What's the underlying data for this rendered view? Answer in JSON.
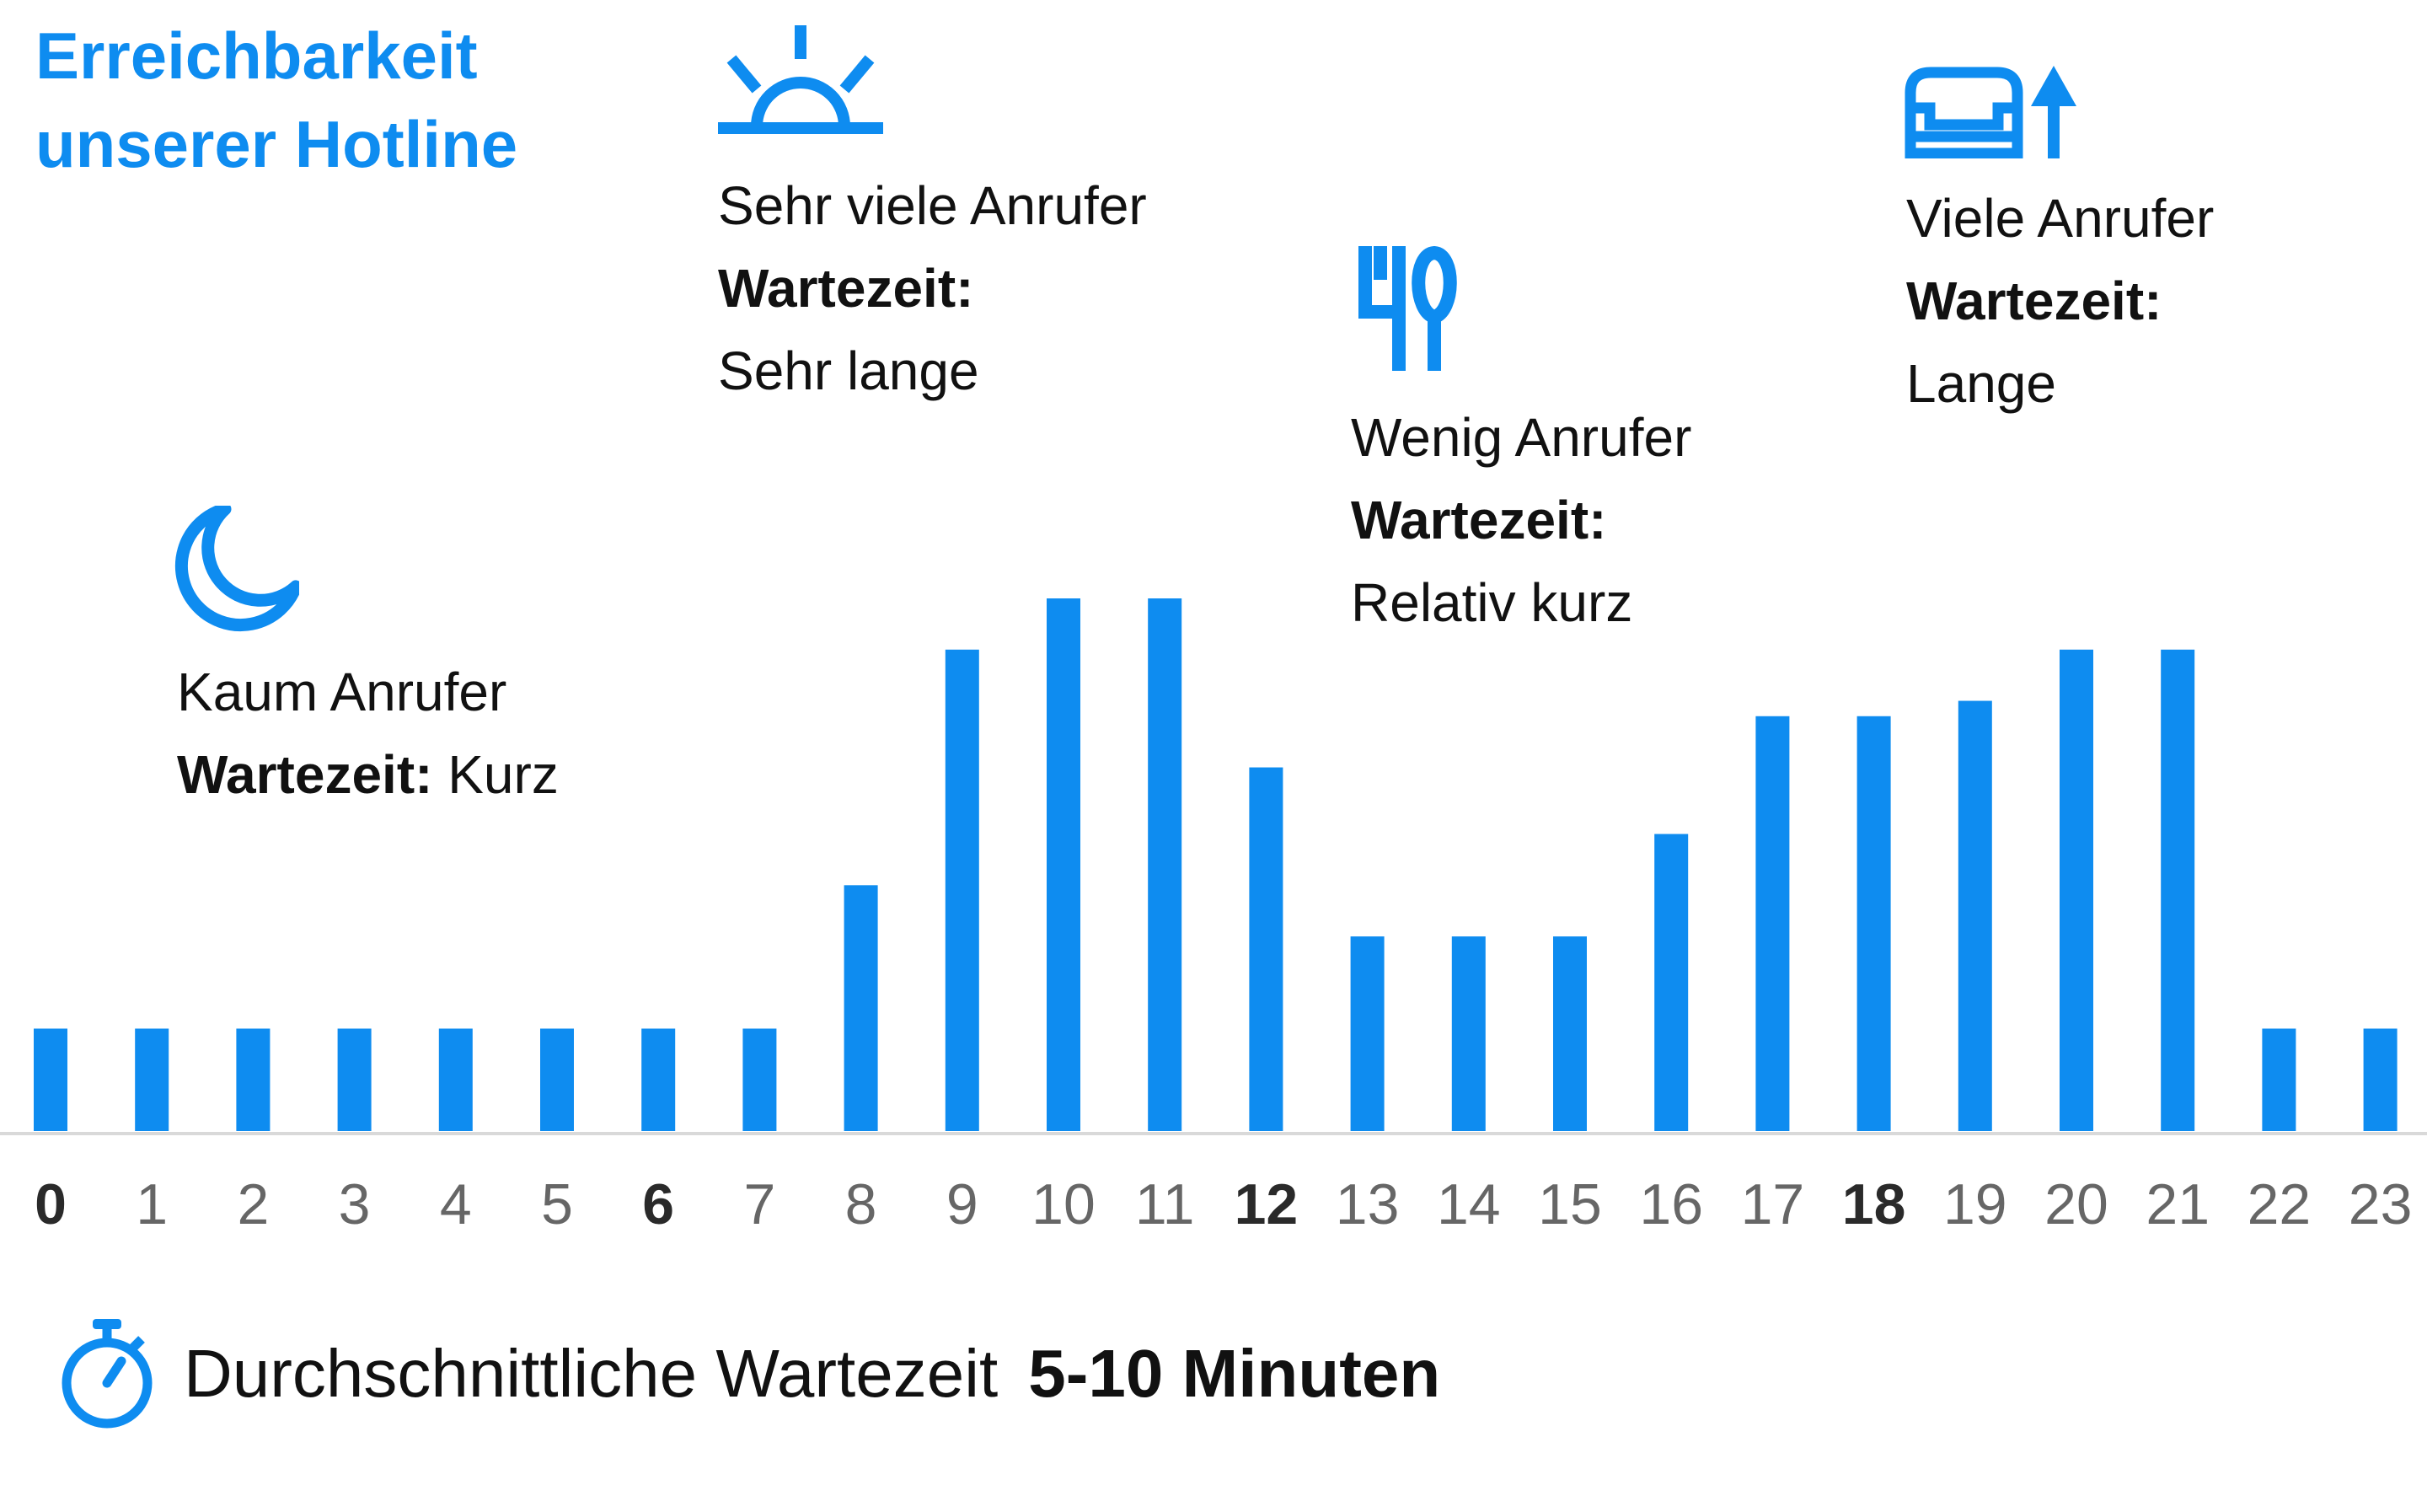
{
  "title": {
    "line1": "Erreichbarkeit",
    "line2": "unserer Hotline"
  },
  "annotations": {
    "night": {
      "icon": "moon-icon",
      "callers": "Kaum Anrufer",
      "label": "Wartezeit:",
      "value": "Kurz"
    },
    "morning": {
      "icon": "sunrise-icon",
      "callers": "Sehr viele Anrufer",
      "label": "Wartezeit:",
      "value": "Sehr lange"
    },
    "lunch": {
      "icon": "cutlery-icon",
      "callers": "Wenig Anrufer",
      "label": "Wartezeit:",
      "value": "Relativ kurz"
    },
    "evening": {
      "icon": "sofa-lamp-icon",
      "callers": "Viele Anrufer",
      "label": "Wartezeit:",
      "value": "Lange"
    }
  },
  "footer": {
    "icon": "stopwatch-icon",
    "text": "Durchschnittliche Wartezeit",
    "value": "5-10 Minuten"
  },
  "colors": {
    "accent": "#0e8cf0",
    "text": "#111111",
    "tick": "#666666",
    "axis": "#d9d9d9"
  },
  "chart_data": {
    "type": "bar",
    "categories": [
      "0",
      "1",
      "2",
      "3",
      "4",
      "5",
      "6",
      "7",
      "8",
      "9",
      "10",
      "11",
      "12",
      "13",
      "14",
      "15",
      "16",
      "17",
      "18",
      "19",
      "20",
      "21",
      "22",
      "23"
    ],
    "bold_categories": [
      "0",
      "6",
      "12",
      "18"
    ],
    "values": [
      1,
      1,
      1,
      1,
      1,
      1,
      1,
      1,
      2.4,
      4.7,
      5.2,
      5.2,
      3.55,
      1.9,
      1.9,
      1.9,
      2.9,
      4.05,
      4.05,
      4.2,
      4.7,
      4.7,
      1,
      1
    ],
    "ylim": [
      0,
      5.2
    ],
    "grid": false,
    "legend": "none",
    "title": "",
    "xlabel": "",
    "ylabel": ""
  }
}
